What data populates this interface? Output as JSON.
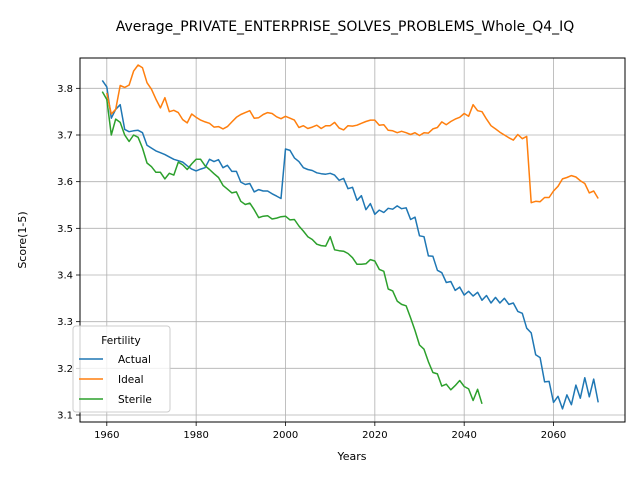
{
  "chart_data": {
    "type": "line",
    "title": "Average_PRIVATE_ENTERPRISE_SOLVES_PROBLEMS_Whole_Q4_IQ",
    "xlabel": "Years",
    "ylabel": "Score(1-5)",
    "xlim": [
      1954,
      2076
    ],
    "ylim": [
      3.085,
      3.865
    ],
    "xticks": [
      1960,
      1980,
      2000,
      2020,
      2040,
      2060
    ],
    "yticks": [
      3.1,
      3.2,
      3.3,
      3.4,
      3.5,
      3.6,
      3.7,
      3.8
    ],
    "xtick_labels": [
      "1960",
      "1980",
      "2000",
      "2020",
      "2040",
      "2060"
    ],
    "ytick_labels": [
      "3.1",
      "3.2",
      "3.3",
      "3.4",
      "3.5",
      "3.6",
      "3.7",
      "3.8"
    ],
    "grid": true,
    "legend": {
      "title": "Fertility",
      "placement": "lower-left"
    },
    "series": [
      {
        "name": "Actual",
        "color": "#1f77b4",
        "x": [
          1959,
          1960,
          1961,
          1962,
          1963,
          1964,
          1965,
          1966,
          1967,
          1968,
          1969,
          1970,
          1971,
          1972,
          1973,
          1974,
          1975,
          1976,
          1977,
          1978,
          1979,
          1980,
          1981,
          1982,
          1983,
          1984,
          1985,
          1986,
          1987,
          1988,
          1989,
          1990,
          1991,
          1992,
          1993,
          1994,
          1995,
          1996,
          1997,
          1998,
          1999,
          2000,
          2001,
          2002,
          2003,
          2004,
          2005,
          2006,
          2007,
          2008,
          2009,
          2010,
          2011,
          2012,
          2013,
          2014,
          2015,
          2016,
          2017,
          2018,
          2019,
          2020,
          2021,
          2022,
          2023,
          2024,
          2025,
          2026,
          2027,
          2028,
          2029,
          2030,
          2031,
          2032,
          2033,
          2034,
          2035,
          2036,
          2037,
          2038,
          2039,
          2040,
          2041,
          2042,
          2043,
          2044,
          2045,
          2046,
          2047,
          2048,
          2049,
          2050,
          2051,
          2052,
          2053,
          2054,
          2055,
          2056,
          2057,
          2058,
          2059,
          2060,
          2061,
          2062,
          2063,
          2064,
          2065,
          2066,
          2067,
          2068,
          2069,
          2070
        ],
        "y": [
          3.817,
          3.803,
          3.736,
          3.755,
          3.765,
          3.712,
          3.707,
          3.709,
          3.71,
          3.705,
          3.678,
          3.672,
          3.666,
          3.662,
          3.658,
          3.653,
          3.648,
          3.645,
          3.642,
          3.634,
          3.627,
          3.623,
          3.627,
          3.63,
          3.648,
          3.643,
          3.647,
          3.63,
          3.635,
          3.622,
          3.622,
          3.599,
          3.594,
          3.596,
          3.578,
          3.583,
          3.58,
          3.58,
          3.574,
          3.569,
          3.564,
          3.67,
          3.667,
          3.651,
          3.643,
          3.63,
          3.626,
          3.624,
          3.619,
          3.617,
          3.616,
          3.618,
          3.614,
          3.603,
          3.607,
          3.585,
          3.588,
          3.56,
          3.57,
          3.54,
          3.553,
          3.53,
          3.539,
          3.534,
          3.543,
          3.541,
          3.548,
          3.542,
          3.544,
          3.519,
          3.524,
          3.484,
          3.482,
          3.441,
          3.44,
          3.41,
          3.405,
          3.384,
          3.386,
          3.367,
          3.374,
          3.357,
          3.365,
          3.355,
          3.363,
          3.346,
          3.356,
          3.34,
          3.352,
          3.34,
          3.35,
          3.337,
          3.34,
          3.322,
          3.318,
          3.286,
          3.276,
          3.229,
          3.223,
          3.171,
          3.172,
          3.127,
          3.14,
          3.113,
          3.143,
          3.122,
          3.164,
          3.136,
          3.18,
          3.139,
          3.177,
          3.127
        ]
      },
      {
        "name": "Ideal",
        "color": "#ff7f0e",
        "x": [
          1960,
          1961,
          1962,
          1963,
          1964,
          1965,
          1966,
          1967,
          1968,
          1969,
          1970,
          1971,
          1972,
          1973,
          1974,
          1975,
          1976,
          1977,
          1978,
          1979,
          1980,
          1981,
          1982,
          1983,
          1984,
          1985,
          1986,
          1987,
          1988,
          1989,
          1990,
          1991,
          1992,
          1993,
          1994,
          1995,
          1996,
          1997,
          1998,
          1999,
          2000,
          2001,
          2002,
          2003,
          2004,
          2005,
          2006,
          2007,
          2008,
          2009,
          2010,
          2011,
          2012,
          2013,
          2014,
          2015,
          2016,
          2017,
          2018,
          2019,
          2020,
          2021,
          2022,
          2023,
          2024,
          2025,
          2026,
          2027,
          2028,
          2029,
          2030,
          2031,
          2032,
          2033,
          2034,
          2035,
          2036,
          2037,
          2038,
          2039,
          2040,
          2041,
          2042,
          2043,
          2044,
          2045,
          2046,
          2047,
          2048,
          2049,
          2050,
          2051,
          2052,
          2053,
          2054,
          2055,
          2056,
          2057,
          2058,
          2059,
          2060,
          2061,
          2062,
          2063,
          2064,
          2065,
          2066,
          2067,
          2068,
          2069,
          2070
        ],
        "y": [
          3.79,
          3.745,
          3.755,
          3.806,
          3.802,
          3.807,
          3.837,
          3.85,
          3.844,
          3.812,
          3.798,
          3.777,
          3.758,
          3.78,
          3.75,
          3.753,
          3.748,
          3.733,
          3.726,
          3.745,
          3.738,
          3.732,
          3.728,
          3.725,
          3.717,
          3.718,
          3.713,
          3.718,
          3.728,
          3.738,
          3.744,
          3.748,
          3.752,
          3.736,
          3.737,
          3.744,
          3.748,
          3.746,
          3.739,
          3.735,
          3.74,
          3.736,
          3.732,
          3.716,
          3.72,
          3.714,
          3.717,
          3.721,
          3.714,
          3.72,
          3.72,
          3.727,
          3.715,
          3.711,
          3.72,
          3.719,
          3.721,
          3.725,
          3.729,
          3.732,
          3.732,
          3.721,
          3.722,
          3.71,
          3.709,
          3.705,
          3.708,
          3.705,
          3.701,
          3.705,
          3.699,
          3.705,
          3.704,
          3.713,
          3.716,
          3.728,
          3.722,
          3.729,
          3.734,
          3.738,
          3.746,
          3.74,
          3.765,
          3.752,
          3.75,
          3.734,
          3.72,
          3.713,
          3.706,
          3.7,
          3.694,
          3.689,
          3.701,
          3.692,
          3.697,
          3.555,
          3.558,
          3.557,
          3.566,
          3.566,
          3.58,
          3.59,
          3.606,
          3.609,
          3.613,
          3.61,
          3.602,
          3.596,
          3.576,
          3.58,
          3.564
        ]
      },
      {
        "name": "Sterile",
        "color": "#2ca02c",
        "x": [
          1959,
          1960,
          1961,
          1962,
          1963,
          1964,
          1965,
          1966,
          1967,
          1968,
          1969,
          1970,
          1971,
          1972,
          1973,
          1974,
          1975,
          1976,
          1977,
          1978,
          1979,
          1980,
          1981,
          1982,
          1983,
          1984,
          1985,
          1986,
          1987,
          1988,
          1989,
          1990,
          1991,
          1992,
          1993,
          1994,
          1995,
          1996,
          1997,
          1998,
          1999,
          2000,
          2001,
          2002,
          2003,
          2004,
          2005,
          2006,
          2007,
          2008,
          2009,
          2010,
          2011,
          2012,
          2013,
          2014,
          2015,
          2016,
          2017,
          2018,
          2019,
          2020,
          2021,
          2022,
          2023,
          2024,
          2025,
          2026,
          2027,
          2028,
          2029,
          2030,
          2031,
          2032,
          2033,
          2034,
          2035,
          2036,
          2037,
          2038,
          2039,
          2040,
          2041,
          2042,
          2043,
          2044
        ],
        "y": [
          3.793,
          3.776,
          3.7,
          3.734,
          3.727,
          3.7,
          3.686,
          3.7,
          3.695,
          3.672,
          3.64,
          3.632,
          3.62,
          3.62,
          3.606,
          3.618,
          3.614,
          3.642,
          3.636,
          3.626,
          3.638,
          3.648,
          3.648,
          3.634,
          3.626,
          3.617,
          3.609,
          3.592,
          3.584,
          3.576,
          3.578,
          3.558,
          3.551,
          3.554,
          3.54,
          3.523,
          3.526,
          3.527,
          3.52,
          3.522,
          3.525,
          3.526,
          3.518,
          3.519,
          3.505,
          3.494,
          3.482,
          3.476,
          3.466,
          3.463,
          3.462,
          3.482,
          3.454,
          3.452,
          3.451,
          3.446,
          3.437,
          3.423,
          3.423,
          3.424,
          3.433,
          3.43,
          3.412,
          3.408,
          3.37,
          3.366,
          3.344,
          3.337,
          3.334,
          3.308,
          3.281,
          3.25,
          3.241,
          3.214,
          3.191,
          3.188,
          3.162,
          3.166,
          3.154,
          3.163,
          3.174,
          3.161,
          3.156,
          3.131,
          3.155,
          3.124
        ]
      }
    ]
  }
}
